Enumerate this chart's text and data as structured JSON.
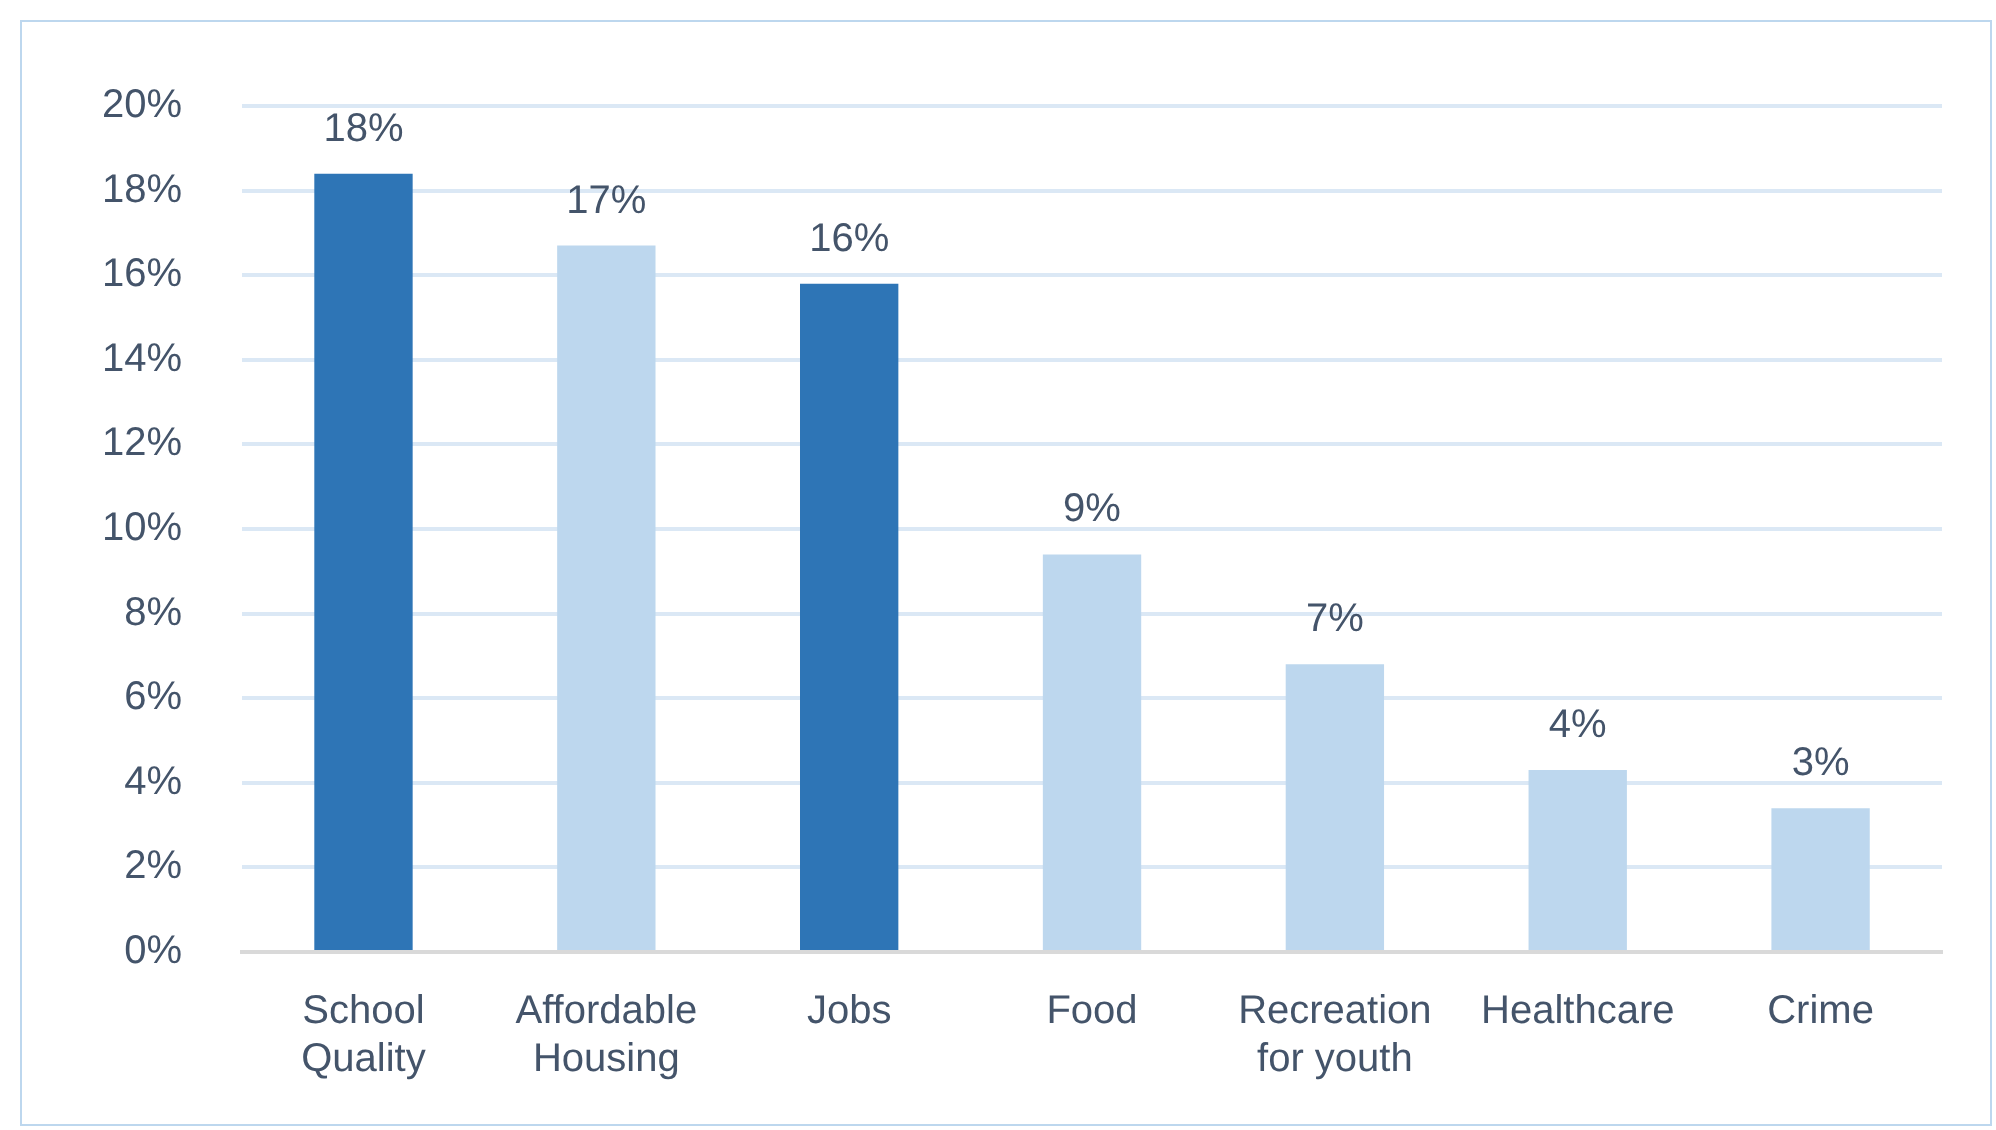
{
  "chart_data": {
    "type": "bar",
    "categories": [
      "School Quality",
      "Affordable Housing",
      "Jobs",
      "Food",
      "Recreation for youth",
      "Healthcare",
      "Crime"
    ],
    "values": [
      18.4,
      16.7,
      15.8,
      9.4,
      6.8,
      4.3,
      3.4
    ],
    "colors": [
      "#2e75b6",
      "#bdd7ee",
      "#2e75b6",
      "#bdd7ee",
      "#bdd7ee",
      "#bdd7ee",
      "#bdd7ee"
    ],
    "value_labels": [
      "18%",
      "17%",
      "16%",
      "9%",
      "7%",
      "4%",
      "3%"
    ],
    "ylim": [
      0,
      20
    ],
    "yticks": [
      {
        "value": 0,
        "label": "0%"
      },
      {
        "value": 2,
        "label": "2%"
      },
      {
        "value": 4,
        "label": "4%"
      },
      {
        "value": 6,
        "label": "6%"
      },
      {
        "value": 8,
        "label": "8%"
      },
      {
        "value": 10,
        "label": "10%"
      },
      {
        "value": 12,
        "label": "12%"
      },
      {
        "value": 14,
        "label": "14%"
      },
      {
        "value": 16,
        "label": "16%"
      },
      {
        "value": 18,
        "label": "18%"
      },
      {
        "value": 20,
        "label": "20%"
      }
    ],
    "grid": "y",
    "legend": false
  }
}
